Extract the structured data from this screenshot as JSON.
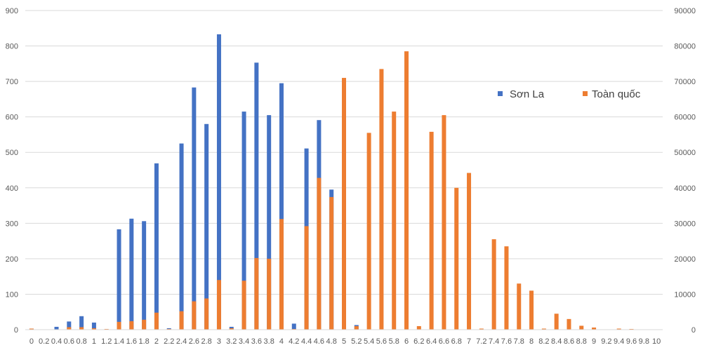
{
  "chart_data": {
    "type": "bar",
    "title": "",
    "xlabel": "",
    "ylabel": "",
    "categories": [
      "0",
      "0.2",
      "0.4",
      "0.6",
      "0.8",
      "1",
      "1.2",
      "1.4",
      "1.6",
      "1.8",
      "2",
      "2.2",
      "2.4",
      "2.6",
      "2.8",
      "3",
      "3.2",
      "3.4",
      "3.6",
      "3.8",
      "4",
      "4.2",
      "4.4",
      "4.6",
      "4.8",
      "5",
      "5.2",
      "5.4",
      "5.6",
      "5.8",
      "6",
      "6.2",
      "6.4",
      "6.6",
      "6.8",
      "7",
      "7.2",
      "7.4",
      "7.6",
      "7.8",
      "8",
      "8.2",
      "8.4",
      "8.6",
      "8.8",
      "9",
      "9.2",
      "9.4",
      "9.6",
      "9.8",
      "10"
    ],
    "axes": {
      "left": {
        "ylim": [
          0,
          900
        ],
        "ticks": [
          "0",
          "100",
          "200",
          "300",
          "400",
          "500",
          "600",
          "700",
          "800",
          "900"
        ]
      },
      "right": {
        "ylim": [
          0,
          90000
        ],
        "ticks": [
          "0",
          "10000",
          "20000",
          "30000",
          "40000",
          "50000",
          "60000",
          "70000",
          "80000",
          "90000"
        ]
      }
    },
    "grid": true,
    "legend_position": "right",
    "series": [
      {
        "name": "Sơn La",
        "axis": "left",
        "color": "#4472C4",
        "values": [
          3,
          0,
          8,
          23,
          38,
          20,
          0,
          283,
          313,
          306,
          469,
          4,
          525,
          683,
          580,
          833,
          8,
          615,
          753,
          605,
          695,
          17,
          511,
          591,
          395,
          0,
          13,
          0,
          0,
          0,
          0,
          0,
          0,
          0,
          0,
          0,
          0,
          0,
          0,
          0,
          0,
          0,
          0,
          0,
          0,
          0,
          0,
          0,
          0,
          0,
          0
        ]
      },
      {
        "name": "Toàn quốc",
        "axis": "right",
        "color": "#ED7D31",
        "values": [
          300,
          0,
          100,
          700,
          700,
          400,
          200,
          2200,
          2400,
          2800,
          4800,
          200,
          5200,
          8000,
          8800,
          14000,
          400,
          13800,
          20200,
          20000,
          31200,
          200,
          29200,
          42800,
          37400,
          71000,
          1000,
          55500,
          73500,
          61500,
          78500,
          1000,
          55800,
          60500,
          40000,
          44200,
          300,
          25500,
          23500,
          13000,
          11000,
          300,
          4500,
          3000,
          1100,
          600,
          100,
          300,
          200,
          0,
          0
        ]
      }
    ]
  }
}
